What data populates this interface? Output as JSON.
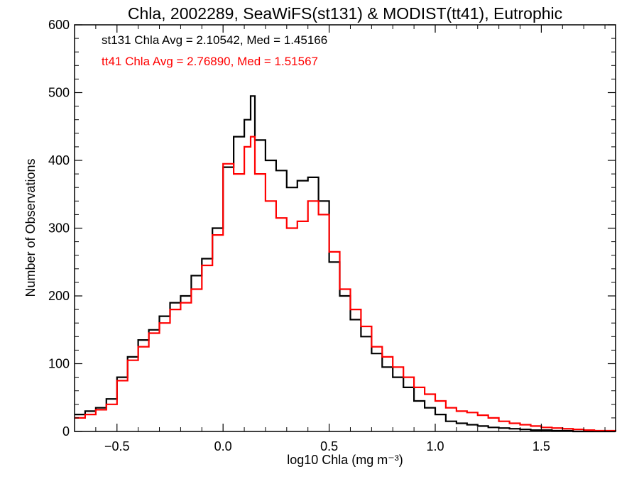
{
  "chart_data": {
    "type": "histogram",
    "title": "Chla, 2002289, SeaWiFS(st131) & MODIST(tt41), Eutrophic",
    "xlabel": "log10 Chla (mg m⁻³)",
    "ylabel": "Number of Observations",
    "xlim": [
      -0.7,
      1.85
    ],
    "ylim": [
      0,
      600
    ],
    "xticks": [
      -0.5,
      0.0,
      0.5,
      1.0,
      1.5
    ],
    "xtick_labels": [
      "−0.5",
      "0.0",
      "0.5",
      "1.0",
      "1.5"
    ],
    "yticks": [
      0,
      100,
      200,
      300,
      400,
      500,
      600
    ],
    "ytick_labels": [
      "0",
      "100",
      "200",
      "300",
      "400",
      "500",
      "600"
    ],
    "grid": false,
    "annotations": [
      {
        "text": "st131 Chla Avg = 2.10542, Med = 1.45166",
        "color": "#000000"
      },
      {
        "text": "tt41 Chla Avg = 2.76890, Med = 1.51567",
        "color": "#ff0000"
      }
    ],
    "series": [
      {
        "color": "#000000",
        "x": [
          -0.7,
          -0.65,
          -0.6,
          -0.55,
          -0.5,
          -0.45,
          -0.4,
          -0.35,
          -0.3,
          -0.25,
          -0.2,
          -0.15,
          -0.1,
          -0.05,
          0.0,
          0.05,
          0.1,
          0.13,
          0.15,
          0.2,
          0.25,
          0.3,
          0.35,
          0.4,
          0.45,
          0.5,
          0.55,
          0.6,
          0.65,
          0.7,
          0.75,
          0.8,
          0.85,
          0.9,
          0.95,
          1.0,
          1.05,
          1.1,
          1.15,
          1.2,
          1.25,
          1.3,
          1.35,
          1.4,
          1.45,
          1.5,
          1.55,
          1.6,
          1.65,
          1.7,
          1.75,
          1.8,
          1.85
        ],
        "y": [
          25,
          30,
          35,
          48,
          80,
          110,
          135,
          150,
          170,
          190,
          200,
          230,
          255,
          300,
          390,
          435,
          460,
          495,
          430,
          400,
          385,
          360,
          370,
          375,
          340,
          250,
          200,
          165,
          140,
          115,
          95,
          80,
          65,
          45,
          35,
          25,
          15,
          12,
          10,
          8,
          6,
          5,
          4,
          3,
          2,
          2,
          1,
          1,
          0,
          0,
          0,
          0,
          0
        ]
      },
      {
        "color": "#ff0000",
        "x": [
          -0.7,
          -0.65,
          -0.6,
          -0.55,
          -0.5,
          -0.45,
          -0.4,
          -0.35,
          -0.3,
          -0.25,
          -0.2,
          -0.15,
          -0.1,
          -0.05,
          0.0,
          0.05,
          0.1,
          0.13,
          0.15,
          0.2,
          0.25,
          0.3,
          0.35,
          0.4,
          0.45,
          0.5,
          0.55,
          0.6,
          0.65,
          0.7,
          0.75,
          0.8,
          0.85,
          0.9,
          0.95,
          1.0,
          1.05,
          1.1,
          1.15,
          1.2,
          1.25,
          1.3,
          1.35,
          1.4,
          1.45,
          1.5,
          1.55,
          1.6,
          1.65,
          1.7,
          1.75,
          1.8,
          1.85
        ],
        "y": [
          20,
          25,
          32,
          40,
          75,
          105,
          125,
          145,
          160,
          180,
          190,
          210,
          245,
          290,
          395,
          380,
          420,
          435,
          380,
          340,
          315,
          300,
          310,
          340,
          320,
          265,
          210,
          180,
          155,
          125,
          110,
          95,
          80,
          65,
          55,
          45,
          35,
          30,
          28,
          24,
          20,
          15,
          12,
          10,
          8,
          6,
          5,
          4,
          3,
          2,
          1,
          1,
          0
        ]
      }
    ]
  }
}
